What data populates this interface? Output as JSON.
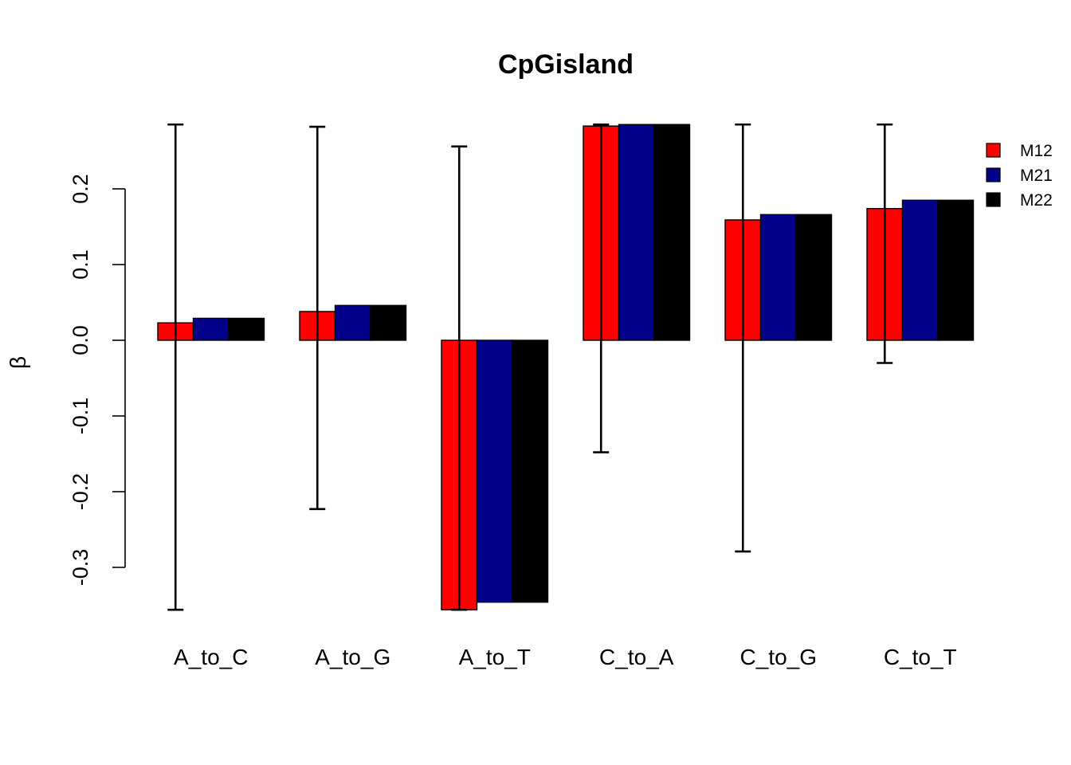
{
  "chart_data": {
    "type": "bar",
    "title": "CpGisland",
    "xlabel": "",
    "ylabel": "β",
    "categories": [
      "A_to_C",
      "A_to_G",
      "A_to_T",
      "C_to_A",
      "C_to_G",
      "C_to_T"
    ],
    "series": [
      {
        "name": "M12",
        "color": "#ff0000",
        "values": [
          0.023,
          0.038,
          -0.356,
          0.283,
          0.159,
          0.174
        ]
      },
      {
        "name": "M21",
        "color": "#00008b",
        "values": [
          0.029,
          0.046,
          -0.346,
          0.285,
          0.166,
          0.185
        ]
      },
      {
        "name": "M22",
        "color": "#000000",
        "values": [
          0.029,
          0.046,
          -0.346,
          0.285,
          0.166,
          0.185
        ]
      }
    ],
    "error_bars": {
      "series": "M12",
      "lower": [
        -0.356,
        -0.223,
        -0.356,
        -0.148,
        -0.279,
        -0.03
      ],
      "upper": [
        0.285,
        0.282,
        0.256,
        0.285,
        0.285,
        0.285
      ]
    },
    "yticks": [
      -0.3,
      -0.2,
      -0.1,
      0.0,
      0.1,
      0.2
    ],
    "ytick_labels": [
      "-0.3",
      "-0.2",
      "-0.1",
      "0.0",
      "0.1",
      "0.2"
    ],
    "ylim": [
      -0.356,
      0.285
    ],
    "grid": false,
    "legend_position": "top-right"
  }
}
